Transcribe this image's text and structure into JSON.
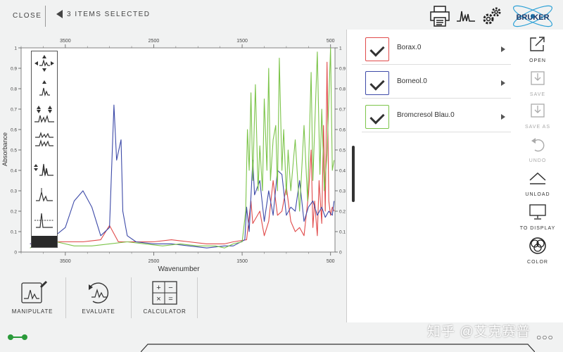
{
  "topbar": {
    "close_label": "CLOSE",
    "selected_label": "3 ITEMS SELECTED",
    "icons": [
      "printer-icon",
      "spectrum-icon",
      "gears-icon",
      "bruker-logo"
    ],
    "brand": "BRUKER"
  },
  "chart_data": {
    "type": "line",
    "xlabel": "Wavenumber",
    "ylabel": "Absorbance",
    "x_reversed": true,
    "xlim": [
      4000,
      450
    ],
    "ylim": [
      0,
      1.0
    ],
    "x_ticks_major": [
      3500,
      2500,
      1500,
      500
    ],
    "y_ticks": [
      "0",
      "0.1",
      "0.2",
      "0.3",
      "0.4",
      "0.5",
      "0.6",
      "0.7",
      "0.8",
      "0.9",
      "1"
    ],
    "grid": false,
    "series": [
      {
        "name": "Borax.0",
        "color": "#e04a4a",
        "points": [
          [
            3900,
            0.04
          ],
          [
            3600,
            0.05
          ],
          [
            3300,
            0.05
          ],
          [
            3100,
            0.06
          ],
          [
            3000,
            0.13
          ],
          [
            2900,
            0.05
          ],
          [
            2700,
            0.05
          ],
          [
            2500,
            0.05
          ],
          [
            2300,
            0.06
          ],
          [
            2100,
            0.05
          ],
          [
            1900,
            0.04
          ],
          [
            1700,
            0.04
          ],
          [
            1600,
            0.05
          ],
          [
            1450,
            0.06
          ],
          [
            1400,
            0.25
          ],
          [
            1380,
            0.14
          ],
          [
            1300,
            0.2
          ],
          [
            1250,
            0.08
          ],
          [
            1200,
            0.15
          ],
          [
            1150,
            0.35
          ],
          [
            1100,
            0.18
          ],
          [
            1050,
            0.2
          ],
          [
            1000,
            0.32
          ],
          [
            950,
            0.15
          ],
          [
            900,
            0.1
          ],
          [
            850,
            0.12
          ],
          [
            800,
            0.08
          ],
          [
            750,
            0.28
          ],
          [
            720,
            0.5
          ],
          [
            700,
            0.12
          ],
          [
            680,
            0.25
          ],
          [
            650,
            0.08
          ],
          [
            630,
            0.35
          ],
          [
            600,
            0.14
          ],
          [
            580,
            0.62
          ],
          [
            560,
            0.2
          ],
          [
            540,
            0.93
          ],
          [
            520,
            0.25
          ],
          [
            500,
            0.18
          ],
          [
            480,
            0.22
          ],
          [
            460,
            0.2
          ]
        ]
      },
      {
        "name": "Borneol.0",
        "color": "#3d4aa8",
        "points": [
          [
            3900,
            0.04
          ],
          [
            3700,
            0.05
          ],
          [
            3500,
            0.12
          ],
          [
            3400,
            0.25
          ],
          [
            3300,
            0.3
          ],
          [
            3200,
            0.22
          ],
          [
            3100,
            0.08
          ],
          [
            3000,
            0.12
          ],
          [
            2950,
            0.72
          ],
          [
            2920,
            0.45
          ],
          [
            2870,
            0.55
          ],
          [
            2850,
            0.2
          ],
          [
            2800,
            0.08
          ],
          [
            2700,
            0.05
          ],
          [
            2500,
            0.04
          ],
          [
            2300,
            0.04
          ],
          [
            2100,
            0.03
          ],
          [
            1900,
            0.02
          ],
          [
            1700,
            0.03
          ],
          [
            1600,
            0.03
          ],
          [
            1470,
            0.06
          ],
          [
            1450,
            0.22
          ],
          [
            1420,
            0.1
          ],
          [
            1380,
            0.45
          ],
          [
            1360,
            0.28
          ],
          [
            1300,
            0.35
          ],
          [
            1250,
            0.15
          ],
          [
            1200,
            0.3
          ],
          [
            1150,
            0.18
          ],
          [
            1100,
            0.4
          ],
          [
            1050,
            0.38
          ],
          [
            1000,
            0.18
          ],
          [
            950,
            0.22
          ],
          [
            900,
            0.2
          ],
          [
            850,
            0.35
          ],
          [
            800,
            0.15
          ],
          [
            750,
            0.22
          ],
          [
            700,
            0.25
          ],
          [
            650,
            0.18
          ],
          [
            600,
            0.22
          ],
          [
            560,
            0.17
          ],
          [
            520,
            0.2
          ],
          [
            480,
            0.18
          ],
          [
            460,
            0.25
          ]
        ]
      },
      {
        "name": "Bromcresol Blau.0",
        "color": "#7cc44a",
        "points": [
          [
            3900,
            0.02
          ],
          [
            3800,
            0.04
          ],
          [
            3700,
            0.03
          ],
          [
            3650,
            0.15
          ],
          [
            3600,
            0.05
          ],
          [
            3400,
            0.03
          ],
          [
            3200,
            0.03
          ],
          [
            3000,
            0.04
          ],
          [
            2800,
            0.05
          ],
          [
            2600,
            0.04
          ],
          [
            2400,
            0.03
          ],
          [
            2200,
            0.04
          ],
          [
            2000,
            0.03
          ],
          [
            1800,
            0.03
          ],
          [
            1700,
            0.02
          ],
          [
            1600,
            0.04
          ],
          [
            1500,
            0.05
          ],
          [
            1460,
            0.2
          ],
          [
            1440,
            0.6
          ],
          [
            1420,
            0.4
          ],
          [
            1400,
            0.78
          ],
          [
            1380,
            0.35
          ],
          [
            1350,
            0.82
          ],
          [
            1320,
            0.3
          ],
          [
            1300,
            0.52
          ],
          [
            1270,
            0.3
          ],
          [
            1250,
            0.75
          ],
          [
            1220,
            0.4
          ],
          [
            1200,
            0.9
          ],
          [
            1180,
            0.35
          ],
          [
            1150,
            0.55
          ],
          [
            1120,
            0.62
          ],
          [
            1100,
            0.3
          ],
          [
            1080,
            0.95
          ],
          [
            1050,
            0.4
          ],
          [
            1030,
            0.6
          ],
          [
            1000,
            0.28
          ],
          [
            980,
            0.5
          ],
          [
            950,
            0.3
          ],
          [
            900,
            0.55
          ],
          [
            850,
            0.2
          ],
          [
            800,
            0.62
          ],
          [
            760,
            0.25
          ],
          [
            720,
            0.88
          ],
          [
            700,
            0.35
          ],
          [
            680,
            0.6
          ],
          [
            650,
            0.98
          ],
          [
            620,
            0.38
          ],
          [
            600,
            0.7
          ],
          [
            570,
            0.3
          ],
          [
            540,
            0.48
          ],
          [
            500,
            1.0
          ],
          [
            480,
            0.4
          ],
          [
            460,
            0.45
          ]
        ]
      }
    ]
  },
  "toolbox": {
    "tools": [
      "zoom-pan-icon",
      "vertical-shift-icon",
      "vertical-scale-icon",
      "stack-spectra-icon",
      "overlay-scale-icon",
      "peak-pick-icon",
      "threshold-icon"
    ]
  },
  "bottom_tools": [
    {
      "label": "MANIPULATE"
    },
    {
      "label": "EVALUATE"
    },
    {
      "label": "CALCULATOR"
    }
  ],
  "items": [
    {
      "name": "Borax.0",
      "color": "#e04a4a"
    },
    {
      "name": "Borneol.0",
      "color": "#3d4aa8"
    },
    {
      "name": "Bromcresol Blau.0",
      "color": "#7cc44a"
    }
  ],
  "actions": [
    {
      "label": "OPEN",
      "enabled": true
    },
    {
      "label": "SAVE",
      "enabled": false
    },
    {
      "label": "SAVE AS",
      "enabled": false
    },
    {
      "label": "UNDO",
      "enabled": false
    },
    {
      "label": "UNLOAD",
      "enabled": true
    },
    {
      "label": "TO DISPLAY",
      "enabled": true
    },
    {
      "label": "COLOR",
      "enabled": true
    }
  ],
  "footer": {
    "watermark": "知乎 @艾克赛普",
    "dots": "○○○"
  }
}
